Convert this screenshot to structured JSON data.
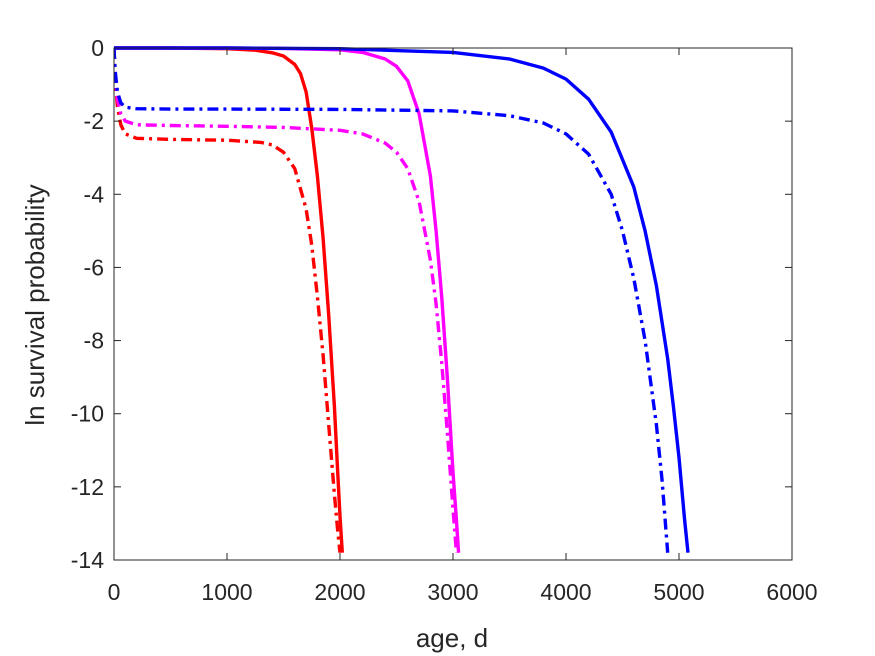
{
  "chart_data": {
    "type": "line",
    "title": "",
    "xlabel": "age, d",
    "ylabel": "ln survival probability",
    "xlim": [
      0,
      6000
    ],
    "ylim": [
      -14,
      0
    ],
    "xticks": [
      0,
      1000,
      2000,
      3000,
      4000,
      5000,
      6000
    ],
    "yticks": [
      0,
      -2,
      -4,
      -6,
      -8,
      -10,
      -12,
      -14
    ],
    "xtick_labels": [
      "0",
      "1000",
      "2000",
      "3000",
      "4000",
      "5000",
      "6000"
    ],
    "ytick_labels": [
      "0",
      "-2",
      "-4",
      "-6",
      "-8",
      "-10",
      "-12",
      "-14"
    ],
    "grid": false,
    "legend": "none",
    "series": [
      {
        "color": "#ff0000",
        "style": "solid",
        "x": [
          0,
          500,
          1000,
          1250,
          1400,
          1500,
          1600,
          1650,
          1700,
          1750,
          1800,
          1850,
          1900,
          1950,
          1980,
          2000,
          2020
        ],
        "y": [
          0,
          0,
          -0.02,
          -0.06,
          -0.13,
          -0.22,
          -0.45,
          -0.7,
          -1.2,
          -2.2,
          -3.5,
          -5.2,
          -7.3,
          -9.8,
          -11.6,
          -12.8,
          -13.8
        ]
      },
      {
        "color": "#ff0000",
        "style": "dashdot",
        "x": [
          0,
          10,
          30,
          60,
          100,
          200,
          500,
          1000,
          1300,
          1400,
          1500,
          1600,
          1700,
          1750,
          1800,
          1850,
          1900,
          1950,
          1980,
          2000
        ],
        "y": [
          0,
          -0.8,
          -1.6,
          -2.1,
          -2.35,
          -2.47,
          -2.5,
          -2.52,
          -2.58,
          -2.65,
          -2.85,
          -3.3,
          -4.4,
          -5.4,
          -6.8,
          -8.4,
          -10.3,
          -12.2,
          -13.2,
          -13.8
        ]
      },
      {
        "color": "#ff00ff",
        "style": "solid",
        "x": [
          0,
          1000,
          1500,
          2000,
          2200,
          2400,
          2500,
          2600,
          2700,
          2800,
          2850,
          2900,
          2950,
          3000,
          3030,
          3050
        ],
        "y": [
          0,
          0,
          -0.01,
          -0.05,
          -0.12,
          -0.3,
          -0.5,
          -0.9,
          -1.8,
          -3.5,
          -5.0,
          -6.8,
          -9.0,
          -11.6,
          -12.9,
          -13.8
        ]
      },
      {
        "color": "#ff00ff",
        "style": "dashdot",
        "x": [
          0,
          10,
          30,
          60,
          100,
          200,
          500,
          1000,
          1500,
          2000,
          2200,
          2400,
          2500,
          2600,
          2700,
          2800,
          2850,
          2900,
          2950,
          3000,
          3030
        ],
        "y": [
          0,
          -0.7,
          -1.4,
          -1.8,
          -2.0,
          -2.1,
          -2.12,
          -2.14,
          -2.17,
          -2.25,
          -2.35,
          -2.6,
          -2.85,
          -3.3,
          -4.2,
          -5.8,
          -7.0,
          -8.6,
          -10.5,
          -12.6,
          -13.8
        ]
      },
      {
        "color": "#0000ff",
        "style": "solid",
        "x": [
          0,
          1000,
          2000,
          3000,
          3500,
          3800,
          4000,
          4200,
          4400,
          4600,
          4700,
          4800,
          4900,
          4950,
          5000,
          5050,
          5080
        ],
        "y": [
          0,
          0,
          -0.02,
          -0.12,
          -0.3,
          -0.55,
          -0.85,
          -1.4,
          -2.3,
          -3.8,
          -5.0,
          -6.5,
          -8.5,
          -9.8,
          -11.2,
          -12.9,
          -13.8
        ]
      },
      {
        "color": "#0000ff",
        "style": "dashdot",
        "x": [
          0,
          10,
          30,
          60,
          100,
          200,
          500,
          1000,
          2000,
          3000,
          3500,
          3800,
          4000,
          4200,
          4400,
          4500,
          4600,
          4700,
          4800,
          4850,
          4900
        ],
        "y": [
          0,
          -0.6,
          -1.2,
          -1.5,
          -1.62,
          -1.66,
          -1.67,
          -1.67,
          -1.68,
          -1.72,
          -1.85,
          -2.05,
          -2.35,
          -2.9,
          -4.0,
          -5.0,
          -6.3,
          -8.0,
          -10.3,
          -11.8,
          -13.8
        ]
      }
    ]
  }
}
